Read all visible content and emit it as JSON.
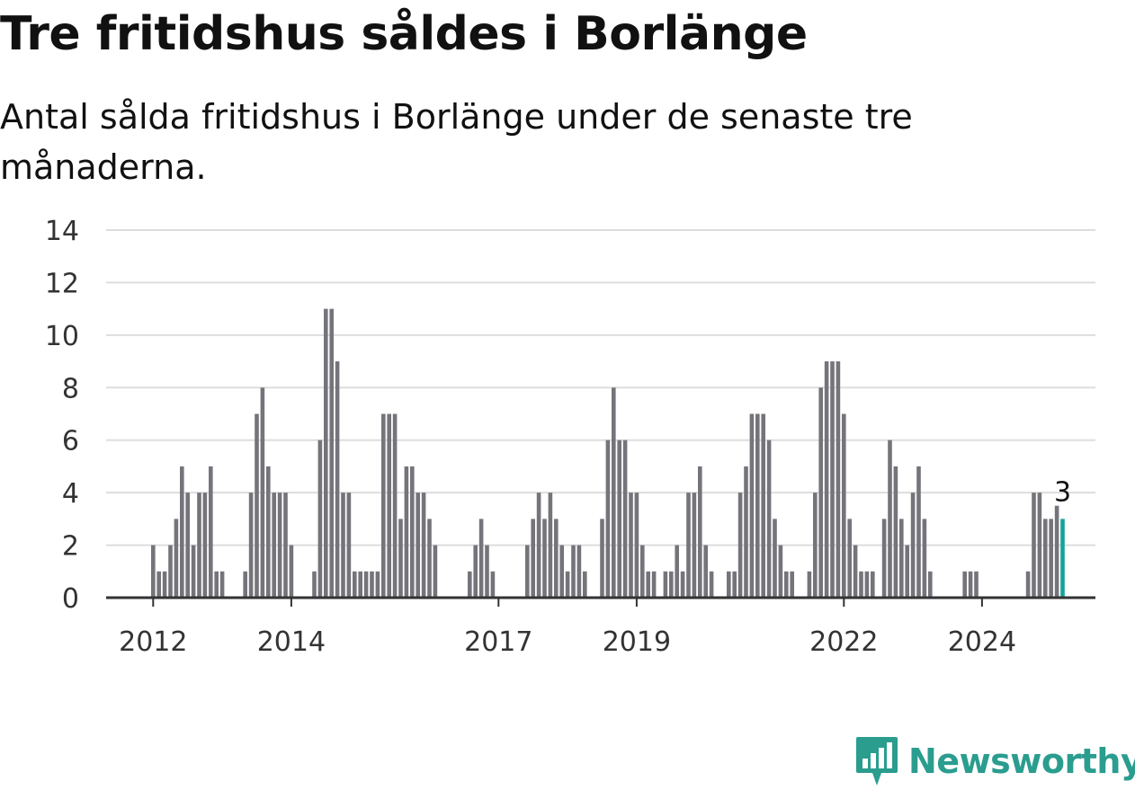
{
  "title": "Tre fritidshus såldes i Borlänge",
  "subtitle": "Antal sålda fritidshus i Borlänge under de senaste tre månaderna.",
  "brand": {
    "name": "Newsworthy",
    "color": "#2a9d8f"
  },
  "colors": {
    "bar": "#75747a",
    "highlight": "#14a39a",
    "grid": "#dddddd",
    "axis": "#333333"
  },
  "chart_data": {
    "type": "bar",
    "title": "Tre fritidshus såldes i Borlänge",
    "xlabel": "",
    "ylabel": "",
    "ylim": [
      0,
      14
    ],
    "yticks": [
      "0",
      "2",
      "4",
      "6",
      "8",
      "10",
      "12",
      "14"
    ],
    "xticks": [
      {
        "label": "2012",
        "index": 0
      },
      {
        "label": "2014",
        "index": 24
      },
      {
        "label": "2017",
        "index": 60
      },
      {
        "label": "2019",
        "index": 84
      },
      {
        "label": "2022",
        "index": 120
      },
      {
        "label": "2024",
        "index": 144
      }
    ],
    "grid": true,
    "values": [
      2,
      1,
      1,
      2,
      3,
      5,
      4,
      2,
      4,
      4,
      5,
      1,
      1,
      0,
      0,
      0,
      1,
      4,
      7,
      8,
      5,
      4,
      4,
      4,
      2,
      0,
      0,
      0,
      1,
      6,
      11,
      11,
      9,
      4,
      4,
      1,
      1,
      1,
      1,
      1,
      7,
      7,
      7,
      3,
      5,
      5,
      4,
      4,
      3,
      2,
      0,
      0,
      0,
      0,
      0,
      1,
      2,
      3,
      2,
      1,
      0,
      0,
      0,
      0,
      0,
      2,
      3,
      4,
      3,
      4,
      3,
      2,
      1,
      2,
      2,
      1,
      0,
      0,
      3,
      6,
      8,
      6,
      6,
      4,
      4,
      2,
      1,
      1,
      0,
      1,
      1,
      2,
      1,
      4,
      4,
      5,
      2,
      1,
      0,
      0,
      1,
      1,
      4,
      5,
      7,
      7,
      7,
      6,
      3,
      2,
      1,
      1,
      0,
      0,
      1,
      4,
      8,
      9,
      9,
      9,
      7,
      3,
      2,
      1,
      1,
      1,
      0,
      3,
      6,
      5,
      3,
      2,
      4,
      5,
      3,
      1,
      0,
      0,
      0,
      0,
      0,
      1,
      1,
      1,
      0,
      0,
      0,
      0,
      0,
      0,
      0,
      0,
      1,
      4,
      4,
      3,
      3,
      3.5,
      3
    ],
    "highlight_index": 158,
    "highlight_label": "3"
  }
}
